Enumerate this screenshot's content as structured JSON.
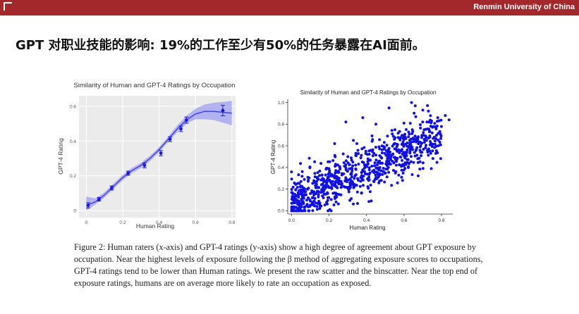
{
  "header": {
    "institution": "Renmin University of China"
  },
  "slide": {
    "title": "GPT 对职业技能的影响: 19%的工作至少有50%的任务暴露在AI面前。"
  },
  "chart_data": [
    {
      "type": "line",
      "title": "Similarity of Human and GPT-4 Ratings by Occupation",
      "xlabel": "Human Rating",
      "ylabel": "GPT-4 Rating",
      "xlim": [
        -0.04,
        0.82
      ],
      "ylim": [
        -0.04,
        0.66
      ],
      "xticks": [
        "0",
        "0.2",
        "0.4",
        "0.6",
        "0.8"
      ],
      "yticks": [
        "0",
        "0.2",
        "0.4",
        "0.6"
      ],
      "grid": true,
      "colors": {
        "line": "#3a3af0",
        "band": "#8c8cf3",
        "point": "#1a1ad8",
        "panel": "#ebebeb"
      },
      "series": [
        {
          "type": "points_with_error",
          "x": [
            0.01,
            0.07,
            0.14,
            0.23,
            0.32,
            0.41,
            0.46,
            0.52,
            0.55,
            0.75
          ],
          "y": [
            0.03,
            0.065,
            0.13,
            0.215,
            0.26,
            0.33,
            0.41,
            0.47,
            0.52,
            0.575
          ],
          "err": [
            0.015,
            0.01,
            0.012,
            0.012,
            0.014,
            0.015,
            0.014,
            0.016,
            0.018,
            0.03
          ]
        },
        {
          "type": "smooth_fit",
          "x": [
            0.0,
            0.05,
            0.1,
            0.15,
            0.2,
            0.25,
            0.3,
            0.35,
            0.4,
            0.45,
            0.5,
            0.55,
            0.6,
            0.65,
            0.7,
            0.75,
            0.8
          ],
          "y": [
            0.03,
            0.05,
            0.09,
            0.14,
            0.19,
            0.23,
            0.26,
            0.3,
            0.35,
            0.41,
            0.47,
            0.52,
            0.555,
            0.57,
            0.57,
            0.565,
            0.56
          ],
          "band_low": [
            0.0,
            0.035,
            0.075,
            0.125,
            0.175,
            0.215,
            0.245,
            0.285,
            0.335,
            0.395,
            0.45,
            0.5,
            0.525,
            0.525,
            0.52,
            0.505,
            0.49
          ],
          "band_high": [
            0.08,
            0.07,
            0.105,
            0.155,
            0.205,
            0.245,
            0.275,
            0.315,
            0.365,
            0.425,
            0.49,
            0.545,
            0.585,
            0.61,
            0.62,
            0.625,
            0.63
          ]
        }
      ]
    },
    {
      "type": "scatter",
      "title": "Similarity of Human and GPT-4 Ratings by Occupation",
      "xlabel": "Human Rating",
      "ylabel": "GPT-4 Rating",
      "xlim": [
        -0.02,
        0.86
      ],
      "ylim": [
        -0.03,
        1.03
      ],
      "xticks": [
        "0.0",
        "0.2",
        "0.4",
        "0.6",
        "0.8"
      ],
      "yticks": [
        "0.0",
        "0.2",
        "0.4",
        "0.6",
        "0.8",
        "1.0"
      ],
      "grid": false,
      "colors": {
        "point": "#1010e0"
      },
      "point_count": 850,
      "trend": {
        "slope": 0.82,
        "intercept": 0.06,
        "spread": 0.11,
        "x_skew": 1.25
      },
      "outliers": {
        "x": [
          0.29,
          0.38,
          0.52,
          0.64,
          0.66,
          0.7,
          0.73,
          0.78,
          0.82,
          0.84,
          0.23,
          0.33,
          0.45
        ],
        "y": [
          0.82,
          0.86,
          0.95,
          1.0,
          0.97,
          0.93,
          0.92,
          0.86,
          0.88,
          0.84,
          0.62,
          0.65,
          0.8
        ]
      }
    }
  ],
  "caption": {
    "text": "Figure 2:  Human raters (x-axis) and GPT-4 ratings (y-axis) show a high degree of agreement about GPT exposure by occupation. Near the highest levels of exposure following the β method of aggregating exposure scores to occupations, GPT-4 ratings tend to be lower than Human ratings. We present the raw scatter and the binscatter. Near the top end of exposure ratings, humans are on average more likely to rate an occupation as exposed."
  }
}
